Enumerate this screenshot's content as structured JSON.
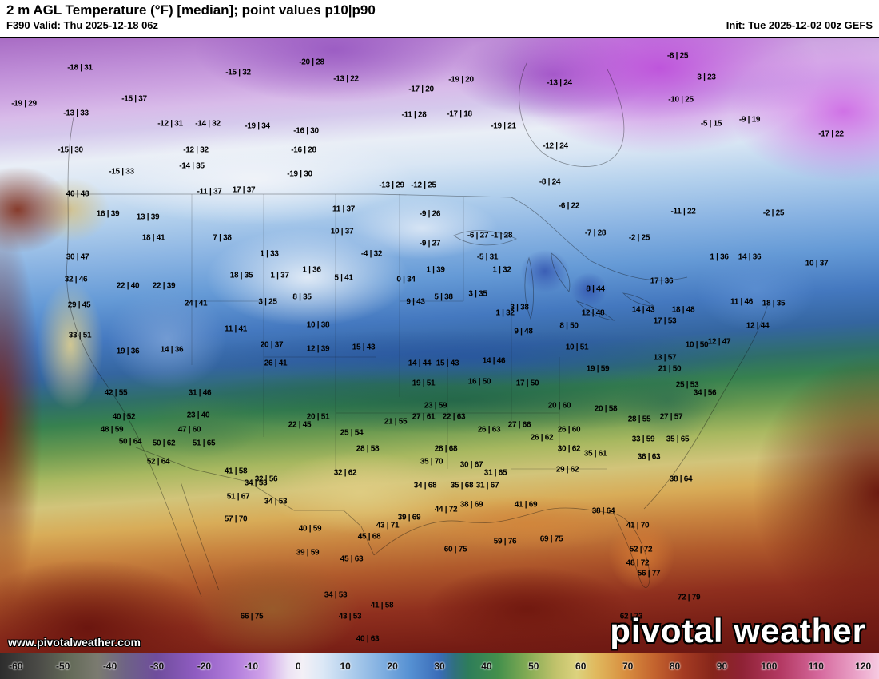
{
  "header": {
    "title": "2 m AGL Temperature (°F) [median]; point values p10|p90",
    "valid": "F390 Valid: Thu 2025-12-18 06z",
    "init": "Init: Tue 2025-12-02 00z GEFS"
  },
  "watermark": "www.pivotalweather.com",
  "logo": {
    "text": "pivotal weather"
  },
  "chart_data": {
    "type": "heatmap",
    "title": "2 m AGL Temperature (°F) [median]; point values p10|p90",
    "model": "GEFS",
    "forecast_hour": "F390",
    "valid_time": "Thu 2025-12-18 06z",
    "init_time": "Tue 2025-12-02 00z",
    "units": "°F",
    "colorbar": {
      "min": -60,
      "max": 120,
      "ticks": [
        -60,
        -50,
        -40,
        -30,
        -20,
        -10,
        0,
        10,
        20,
        30,
        40,
        50,
        60,
        70,
        80,
        90,
        100,
        110,
        120
      ],
      "stops": [
        [
          -60,
          "#2d2d2d"
        ],
        [
          -52,
          "#4b4b47"
        ],
        [
          -46,
          "#636a58"
        ],
        [
          -40,
          "#7b7b70"
        ],
        [
          -34,
          "#6e6287"
        ],
        [
          -28,
          "#6f4d9c"
        ],
        [
          -20,
          "#8f5cc1"
        ],
        [
          -12,
          "#b27ddc"
        ],
        [
          -6,
          "#d0a3e9"
        ],
        [
          -1,
          "#ece2f4"
        ],
        [
          2,
          "#f3f0f6"
        ],
        [
          6,
          "#dce8f6"
        ],
        [
          12,
          "#aecdec"
        ],
        [
          18,
          "#82b0e1"
        ],
        [
          24,
          "#5590d2"
        ],
        [
          30,
          "#3a6cb8"
        ],
        [
          33,
          "#30707e"
        ],
        [
          36,
          "#2e7d5a"
        ],
        [
          42,
          "#44904c"
        ],
        [
          48,
          "#83ab54"
        ],
        [
          54,
          "#c2c36c"
        ],
        [
          58,
          "#dcd27e"
        ],
        [
          62,
          "#e0b95e"
        ],
        [
          68,
          "#d88f40"
        ],
        [
          74,
          "#c4642e"
        ],
        [
          80,
          "#a43b22"
        ],
        [
          86,
          "#86251a"
        ],
        [
          92,
          "#8f2235"
        ],
        [
          100,
          "#b43a64"
        ],
        [
          108,
          "#d66a9e"
        ],
        [
          116,
          "#eca8cc"
        ],
        [
          120,
          "#f6c9e0"
        ]
      ]
    },
    "point_values": [
      [
        100,
        85,
        "-18 | 31"
      ],
      [
        298,
        91,
        "-15 | 32"
      ],
      [
        390,
        78,
        "-20 | 28"
      ],
      [
        433,
        99,
        "-13 | 22"
      ],
      [
        527,
        112,
        "-17 | 20"
      ],
      [
        577,
        100,
        "-19 | 20"
      ],
      [
        700,
        104,
        "-13 | 24"
      ],
      [
        848,
        70,
        "-8 | 25"
      ],
      [
        884,
        97,
        "3 | 23"
      ],
      [
        30,
        130,
        "-19 | 29"
      ],
      [
        95,
        142,
        "-13 | 33"
      ],
      [
        168,
        124,
        "-15 | 37"
      ],
      [
        213,
        155,
        "-12 | 31"
      ],
      [
        260,
        155,
        "-14 | 32"
      ],
      [
        322,
        158,
        "-19 | 34"
      ],
      [
        383,
        164,
        "-16 | 30"
      ],
      [
        380,
        188,
        "-16 | 28"
      ],
      [
        518,
        144,
        "-11 | 28"
      ],
      [
        575,
        143,
        "-17 | 18"
      ],
      [
        630,
        158,
        "-19 | 21"
      ],
      [
        852,
        125,
        "-10 | 25"
      ],
      [
        890,
        155,
        "-5 | 15"
      ],
      [
        938,
        150,
        "-9 | 19"
      ],
      [
        1040,
        168,
        "-17 | 22"
      ],
      [
        88,
        188,
        "-15 | 30"
      ],
      [
        245,
        188,
        "-12 | 32"
      ],
      [
        152,
        215,
        "-15 | 33"
      ],
      [
        240,
        208,
        "-14 | 35"
      ],
      [
        375,
        218,
        "-19 | 30"
      ],
      [
        695,
        183,
        "-12 | 24"
      ],
      [
        490,
        232,
        "-13 | 29"
      ],
      [
        530,
        232,
        "-12 | 25"
      ],
      [
        688,
        228,
        "-8 | 24"
      ],
      [
        712,
        258,
        "-6 | 22"
      ],
      [
        745,
        292,
        "-7 | 28"
      ],
      [
        855,
        265,
        "-11 | 22"
      ],
      [
        968,
        267,
        "-2 | 25"
      ],
      [
        97,
        243,
        "40 | 48"
      ],
      [
        135,
        268,
        "16 | 39"
      ],
      [
        185,
        272,
        "13 | 39"
      ],
      [
        192,
        298,
        "18 | 41"
      ],
      [
        278,
        298,
        "7 | 38"
      ],
      [
        97,
        322,
        "30 | 47"
      ],
      [
        95,
        350,
        "32 | 46"
      ],
      [
        99,
        382,
        "29 | 45"
      ],
      [
        160,
        358,
        "22 | 40"
      ],
      [
        205,
        358,
        "22 | 39"
      ],
      [
        245,
        380,
        "24 | 41"
      ],
      [
        302,
        345,
        "18 | 35"
      ],
      [
        160,
        440,
        "19 | 36"
      ],
      [
        215,
        438,
        "14 | 36"
      ],
      [
        100,
        420,
        "33 | 51"
      ],
      [
        262,
        240,
        "-11 | 37"
      ],
      [
        305,
        238,
        "17 | 37"
      ],
      [
        430,
        262,
        "11 | 37"
      ],
      [
        428,
        290,
        "10 | 37"
      ],
      [
        337,
        318,
        "1 | 33"
      ],
      [
        350,
        345,
        "1 | 37"
      ],
      [
        335,
        378,
        "3 | 25"
      ],
      [
        378,
        372,
        "8 | 35"
      ],
      [
        390,
        338,
        "1 | 36"
      ],
      [
        430,
        348,
        "5 | 41"
      ],
      [
        295,
        412,
        "11 | 41"
      ],
      [
        340,
        432,
        "20 | 37"
      ],
      [
        398,
        437,
        "12 | 39"
      ],
      [
        455,
        435,
        "15 | 43"
      ],
      [
        345,
        455,
        "26 | 41"
      ],
      [
        398,
        407,
        "10 | 38"
      ],
      [
        465,
        318,
        "-4 | 32"
      ],
      [
        508,
        350,
        "0 | 34"
      ],
      [
        545,
        338,
        "1 | 39"
      ],
      [
        538,
        305,
        "-9 | 27"
      ],
      [
        538,
        268,
        "-9 | 26"
      ],
      [
        598,
        295,
        "-6 | 27"
      ],
      [
        628,
        295,
        "-1 | 28"
      ],
      [
        610,
        322,
        "-5 | 31"
      ],
      [
        628,
        338,
        "1 | 32"
      ],
      [
        598,
        368,
        "3 | 35"
      ],
      [
        555,
        372,
        "5 | 38"
      ],
      [
        520,
        378,
        "9 | 43"
      ],
      [
        650,
        385,
        "3 | 38"
      ],
      [
        632,
        392,
        "1 | 32"
      ],
      [
        525,
        455,
        "14 | 44"
      ],
      [
        560,
        455,
        "15 | 43"
      ],
      [
        618,
        452,
        "14 | 46"
      ],
      [
        530,
        480,
        "19 | 51"
      ],
      [
        600,
        478,
        "16 | 50"
      ],
      [
        660,
        480,
        "17 | 50"
      ],
      [
        495,
        528,
        "21 | 55"
      ],
      [
        545,
        508,
        "23 | 59"
      ],
      [
        568,
        522,
        "22 | 63"
      ],
      [
        530,
        522,
        "27 | 61"
      ],
      [
        612,
        538,
        "26 | 63"
      ],
      [
        650,
        532,
        "27 | 66"
      ],
      [
        558,
        562,
        "28 | 68"
      ],
      [
        540,
        578,
        "35 | 70"
      ],
      [
        590,
        582,
        "30 | 67"
      ],
      [
        620,
        592,
        "31 | 65"
      ],
      [
        710,
        588,
        "29 | 62"
      ],
      [
        532,
        608,
        "34 | 68"
      ],
      [
        578,
        608,
        "35 | 68"
      ],
      [
        610,
        608,
        "31 | 67"
      ],
      [
        590,
        632,
        "38 | 69"
      ],
      [
        558,
        638,
        "44 | 72"
      ],
      [
        512,
        648,
        "39 | 69"
      ],
      [
        485,
        658,
        "43 | 71"
      ],
      [
        462,
        672,
        "45 | 68"
      ],
      [
        388,
        662,
        "40 | 59"
      ],
      [
        385,
        692,
        "39 | 59"
      ],
      [
        440,
        700,
        "45 | 63"
      ],
      [
        570,
        688,
        "60 | 75"
      ],
      [
        632,
        678,
        "59 | 76"
      ],
      [
        690,
        675,
        "69 | 75"
      ],
      [
        658,
        632,
        "41 | 69"
      ],
      [
        755,
        640,
        "38 | 64"
      ],
      [
        712,
        562,
        "30 | 62"
      ],
      [
        712,
        538,
        "26 | 60"
      ],
      [
        678,
        548,
        "26 | 62"
      ],
      [
        745,
        568,
        "35 | 61"
      ],
      [
        812,
        572,
        "36 | 63"
      ],
      [
        700,
        508,
        "20 | 60"
      ],
      [
        758,
        512,
        "20 | 58"
      ],
      [
        800,
        525,
        "28 | 55"
      ],
      [
        840,
        522,
        "27 | 57"
      ],
      [
        805,
        550,
        "33 | 59"
      ],
      [
        848,
        550,
        "35 | 65"
      ],
      [
        852,
        600,
        "38 | 64"
      ],
      [
        798,
        658,
        "41 | 70"
      ],
      [
        802,
        688,
        "52 | 72"
      ],
      [
        798,
        705,
        "48 | 72"
      ],
      [
        812,
        718,
        "56 | 77"
      ],
      [
        862,
        748,
        "72 | 79"
      ],
      [
        790,
        772,
        "62 | 73"
      ],
      [
        655,
        415,
        "9 | 48"
      ],
      [
        722,
        435,
        "10 | 51"
      ],
      [
        712,
        408,
        "8 | 50"
      ],
      [
        742,
        392,
        "12 | 48"
      ],
      [
        745,
        362,
        "8 | 44"
      ],
      [
        828,
        352,
        "17 | 36"
      ],
      [
        855,
        388,
        "18 | 48"
      ],
      [
        805,
        388,
        "14 | 43"
      ],
      [
        832,
        402,
        "17 | 53"
      ],
      [
        832,
        448,
        "13 | 57"
      ],
      [
        748,
        462,
        "19 | 59"
      ],
      [
        838,
        462,
        "21 | 50"
      ],
      [
        860,
        482,
        "25 | 53"
      ],
      [
        882,
        492,
        "34 | 56"
      ],
      [
        800,
        298,
        "-2 | 25"
      ],
      [
        900,
        322,
        "1 | 36"
      ],
      [
        938,
        322,
        "14 | 36"
      ],
      [
        1022,
        330,
        "10 | 37"
      ],
      [
        928,
        378,
        "11 | 46"
      ],
      [
        968,
        380,
        "18 | 35"
      ],
      [
        948,
        408,
        "12 | 44"
      ],
      [
        872,
        432,
        "10 | 50"
      ],
      [
        900,
        428,
        "12 | 47"
      ],
      [
        145,
        492,
        "42 | 55"
      ],
      [
        155,
        522,
        "40 | 52"
      ],
      [
        140,
        538,
        "48 | 59"
      ],
      [
        163,
        553,
        "50 | 64"
      ],
      [
        205,
        555,
        "50 | 62"
      ],
      [
        198,
        578,
        "52 | 64"
      ],
      [
        237,
        538,
        "47 | 60"
      ],
      [
        250,
        492,
        "31 | 46"
      ],
      [
        248,
        520,
        "23 | 40"
      ],
      [
        255,
        555,
        "51 | 65"
      ],
      [
        295,
        590,
        "41 | 58"
      ],
      [
        320,
        605,
        "34 | 53"
      ],
      [
        298,
        622,
        "51 | 67"
      ],
      [
        295,
        650,
        "57 | 70"
      ],
      [
        345,
        628,
        "34 | 53"
      ],
      [
        333,
        600,
        "32 | 56"
      ],
      [
        375,
        532,
        "22 | 45"
      ],
      [
        398,
        522,
        "20 | 51"
      ],
      [
        440,
        542,
        "25 | 54"
      ],
      [
        460,
        562,
        "28 | 58"
      ],
      [
        432,
        592,
        "32 | 62"
      ],
      [
        420,
        745,
        "34 | 53"
      ],
      [
        438,
        772,
        "43 | 53"
      ],
      [
        478,
        758,
        "41 | 58"
      ],
      [
        460,
        800,
        "40 | 63"
      ],
      [
        315,
        772,
        "66 | 75"
      ]
    ]
  }
}
